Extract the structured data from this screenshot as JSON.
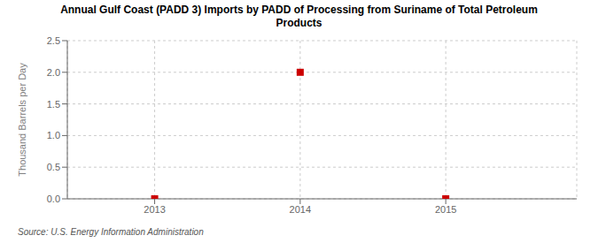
{
  "chart_data": {
    "type": "scatter",
    "title": "Annual Gulf Coast (PADD 3) Imports by PADD of Processing from Suriname of Total Petroleum\nProducts",
    "y_label": "Thousand Barrels per Day",
    "annotations": [
      "Source: U.S. Energy Information Administration"
    ],
    "x": [
      2013,
      2014,
      2015
    ],
    "values": [
      0,
      2.0,
      0
    ],
    "color": "#cc0000",
    "marker": "square",
    "xlim": [
      2012.4,
      2015.9
    ],
    "xticks": [
      2013,
      2014,
      2015
    ],
    "ylim": [
      0.0,
      2.5
    ],
    "yticks": [
      {
        "value": 0,
        "label": "0.0"
      },
      0.5,
      {
        "value": 1,
        "label": "1.0"
      },
      1.5,
      {
        "value": 2,
        "label": "2.0"
      },
      2.5
    ],
    "grid": true
  }
}
